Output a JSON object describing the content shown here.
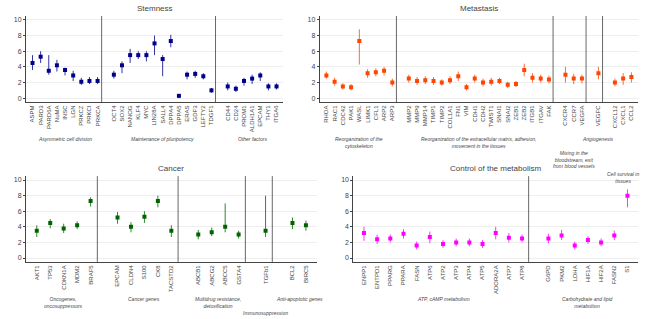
{
  "chart_data": [
    {
      "type": "scatter",
      "title": "Stemness",
      "color": "#00008B",
      "marker": "square",
      "ylim": [
        -0.5,
        10.5
      ],
      "yticks": [
        0,
        2,
        4,
        6,
        8,
        10
      ],
      "grid": true,
      "groups": [
        {
          "label": "Asymmetric cell division",
          "categories": [
            "ASPM",
            "PARD3",
            "PARD6A",
            "NuMA",
            "INSC",
            "LGN",
            "PRKCZ",
            "PRKCI",
            "PRKCA"
          ],
          "values": [
            4.5,
            5.3,
            3.5,
            4.2,
            3.6,
            2.9,
            2.1,
            2.2,
            2.2
          ],
          "err_low": [
            0.9,
            0.8,
            0.5,
            0.8,
            0.7,
            0.7,
            0.4,
            0.4,
            0.4
          ],
          "err_high": [
            1.0,
            0.7,
            2.0,
            0.7,
            0.3,
            0.6,
            0.5,
            0.5,
            0.5
          ]
        },
        {
          "label": "Maintenance of pluripotency",
          "categories": [
            "OCT4",
            "SOX2",
            "NANOG",
            "KLF4",
            "MYC",
            "LIN28A",
            "SALL4",
            "DPPA4",
            "DPPA5",
            "ERAS",
            "GDF3",
            "LEFTY2",
            "TDGF1"
          ],
          "values": [
            3.0,
            4.2,
            5.5,
            5.5,
            5.5,
            7.0,
            5.0,
            7.3,
            0.3,
            3.0,
            3.1,
            2.8,
            1.0
          ],
          "err_low": [
            0.5,
            1.0,
            1.0,
            0.5,
            0.8,
            1.5,
            2.2,
            0.8,
            0.3,
            0.6,
            0.5,
            0.4,
            0.3
          ],
          "err_high": [
            0.5,
            0.5,
            0.8,
            0.5,
            0.5,
            1.0,
            0.5,
            0.8,
            0.2,
            0.4,
            0.4,
            0.4,
            0.3
          ]
        },
        {
          "label": "Other factors",
          "categories": [
            "CD44",
            "CD24",
            "PROM1",
            "ALDH1A1",
            "EPCAM",
            "THY1",
            "ITGA6"
          ],
          "values": [
            1.5,
            1.2,
            2.2,
            2.5,
            2.9,
            1.5,
            1.5
          ],
          "err_low": [
            0.5,
            0.4,
            0.6,
            0.7,
            0.7,
            0.5,
            0.4
          ],
          "err_high": [
            0.5,
            0.4,
            0.4,
            0.5,
            0.4,
            0.4,
            0.4
          ]
        }
      ]
    },
    {
      "type": "scatter",
      "title": "Metastasis",
      "color": "#FF4500",
      "marker": "square",
      "ylim": [
        -0.5,
        10.5
      ],
      "yticks": [
        0,
        2,
        4,
        6,
        8,
        10
      ],
      "grid": true,
      "groups": [
        {
          "label": "Reorganization of the cytoskeleton",
          "categories": [
            "RHOA",
            "RAC1",
            "CDC42",
            "PAK1",
            "WASL",
            "LIMK1",
            "CFL1",
            "ARP2",
            "ARP3"
          ],
          "values": [
            2.9,
            2.1,
            1.5,
            1.4,
            7.3,
            3.2,
            3.3,
            3.5,
            2.0
          ],
          "err_low": [
            0.4,
            0.5,
            0.4,
            0.4,
            3.0,
            0.6,
            0.5,
            0.6,
            0.5
          ],
          "err_high": [
            0.5,
            0.5,
            0.4,
            0.4,
            1.5,
            0.5,
            0.5,
            0.5,
            0.5
          ]
        },
        {
          "label": "Reorganization of the extracellular matrix, adhesion, movement in the tissues",
          "categories": [
            "MMP2",
            "MMP9",
            "MMP14",
            "TIMP1",
            "TIMP2",
            "COL1A1",
            "FN1",
            "VIM",
            "CDH1",
            "CDH2",
            "TWIST1",
            "SNAI1",
            "SNAI2",
            "ZEB1",
            "ZEB2",
            "ITGB1",
            "ITGAV",
            "FAK"
          ],
          "values": [
            2.5,
            2.2,
            2.3,
            2.2,
            2.0,
            2.3,
            2.8,
            1.4,
            2.5,
            2.0,
            2.1,
            2.2,
            1.7,
            1.8,
            3.6,
            2.6,
            2.5,
            2.4
          ],
          "err_low": [
            0.5,
            0.5,
            0.5,
            0.5,
            0.4,
            0.5,
            0.6,
            0.4,
            0.5,
            0.5,
            0.5,
            0.4,
            0.4,
            0.4,
            0.8,
            0.6,
            0.5,
            0.5
          ],
          "err_high": [
            0.5,
            0.5,
            0.5,
            0.5,
            0.4,
            0.5,
            0.6,
            0.4,
            0.5,
            0.5,
            0.5,
            0.4,
            0.4,
            0.4,
            0.8,
            0.6,
            0.5,
            0.5
          ]
        },
        {
          "label": "Mixing in the\nbloodstream, exit\nfrom blood vessels",
          "categories": [
            "CXCR4",
            "CCR7",
            "VEGFA"
          ],
          "values": [
            3.0,
            2.5,
            2.5
          ],
          "err_low": [
            1.0,
            0.7,
            0.6
          ],
          "err_high": [
            1.0,
            0.6,
            0.5
          ]
        },
        {
          "label": "Angiogenesis",
          "categories": [
            "VEGFC"
          ],
          "values": [
            3.2
          ],
          "err_low": [
            0.8
          ],
          "err_high": [
            0.8
          ]
        },
        {
          "label": "Cell survival in\ntissues",
          "categories": [
            "CXCL12",
            "CXCL1",
            "CCL2"
          ],
          "values": [
            2.0,
            2.5,
            2.7
          ],
          "err_low": [
            0.5,
            0.8,
            0.7
          ],
          "err_high": [
            0.5,
            0.7,
            0.6
          ]
        }
      ]
    },
    {
      "type": "scatter",
      "title": "Cancer",
      "color": "#006400",
      "marker": "square",
      "ylim": [
        -0.5,
        10.5
      ],
      "yticks": [
        0,
        2,
        4,
        6,
        8,
        10
      ],
      "grid": true,
      "groups": [
        {
          "label": "Oncogenes, oncosuppressors",
          "categories": [
            "AKT1",
            "TP53",
            "CDKN1A",
            "MDM2",
            "BRAF5"
          ],
          "values": [
            3.5,
            4.5,
            3.8,
            4.2,
            7.3
          ],
          "err_low": [
            0.8,
            0.7,
            0.6,
            0.5,
            0.7
          ],
          "err_high": [
            0.7,
            0.5,
            0.6,
            0.5,
            0.5
          ]
        },
        {
          "label": "Cancer genes",
          "categories": [
            "EPCAM",
            "CLDN4",
            "S100",
            "CK8",
            "TACSTD2"
          ],
          "values": [
            5.2,
            4.0,
            5.3,
            7.3,
            3.5
          ],
          "err_low": [
            0.8,
            0.7,
            0.8,
            0.8,
            0.8
          ],
          "err_high": [
            0.7,
            0.6,
            0.7,
            0.7,
            0.7
          ]
        },
        {
          "label": "Multidrug resistance, detoxification",
          "categories": [
            "ABCB1",
            "ABCG2",
            "ABCC5",
            "GSTA4"
          ],
          "values": [
            3.0,
            3.3,
            4.0,
            3.0
          ],
          "err_low": [
            0.6,
            0.5,
            0.7,
            0.5
          ],
          "err_high": [
            0.6,
            0.6,
            3.0,
            0.5
          ]
        },
        {
          "label": "Immunosuppression",
          "categories": [
            "TGFb1"
          ],
          "values": [
            3.5
          ],
          "err_low": [
            0.8
          ],
          "err_high": [
            4.5
          ]
        },
        {
          "label": "Anti-apoptotic genes",
          "categories": [
            "BCL2",
            "BIRC5"
          ],
          "values": [
            4.5,
            4.2
          ],
          "err_low": [
            0.8,
            0.7
          ],
          "err_high": [
            0.7,
            0.6
          ]
        }
      ]
    },
    {
      "type": "scatter",
      "title": "Control of the metabolism",
      "color": "#FF00FF",
      "marker": "square",
      "ylim": [
        -0.5,
        10.5
      ],
      "yticks": [
        0,
        2,
        4,
        6,
        8,
        10
      ],
      "grid": true,
      "groups": [
        {
          "label": "ATP, cAMP metabolism",
          "categories": [
            "ENPP1",
            "ENTPD1",
            "PPARG",
            "PPARA",
            "FASN",
            "ATP6",
            "ATP2",
            "ATP3",
            "ATP4",
            "ATP5",
            "ADORA2A",
            "ATP7",
            "ATP8"
          ],
          "values": [
            3.2,
            2.4,
            2.5,
            3.1,
            1.6,
            2.7,
            1.8,
            2.0,
            2.0,
            1.8,
            3.2,
            2.6,
            2.5
          ],
          "err_low": [
            1.0,
            0.6,
            0.5,
            0.6,
            0.5,
            0.8,
            0.5,
            0.5,
            0.5,
            0.5,
            0.8,
            0.6,
            0.5
          ],
          "err_high": [
            0.8,
            0.6,
            0.5,
            0.6,
            0.5,
            0.7,
            0.5,
            0.5,
            0.5,
            0.5,
            0.8,
            0.6,
            0.5
          ]
        },
        {
          "label": "Carbohydrate and lipid metabolism",
          "categories": [
            "G6PD",
            "PKM2",
            "LDHA",
            "HIF1A",
            "HIF2A",
            "FASN2",
            "S1"
          ],
          "values": [
            2.5,
            2.9,
            1.6,
            2.3,
            2.0,
            2.9,
            8.0
          ],
          "err_low": [
            0.6,
            0.6,
            0.5,
            0.5,
            0.5,
            0.6,
            1.5
          ],
          "err_high": [
            0.6,
            0.7,
            0.5,
            0.5,
            0.5,
            0.6,
            0.8
          ]
        }
      ]
    }
  ]
}
